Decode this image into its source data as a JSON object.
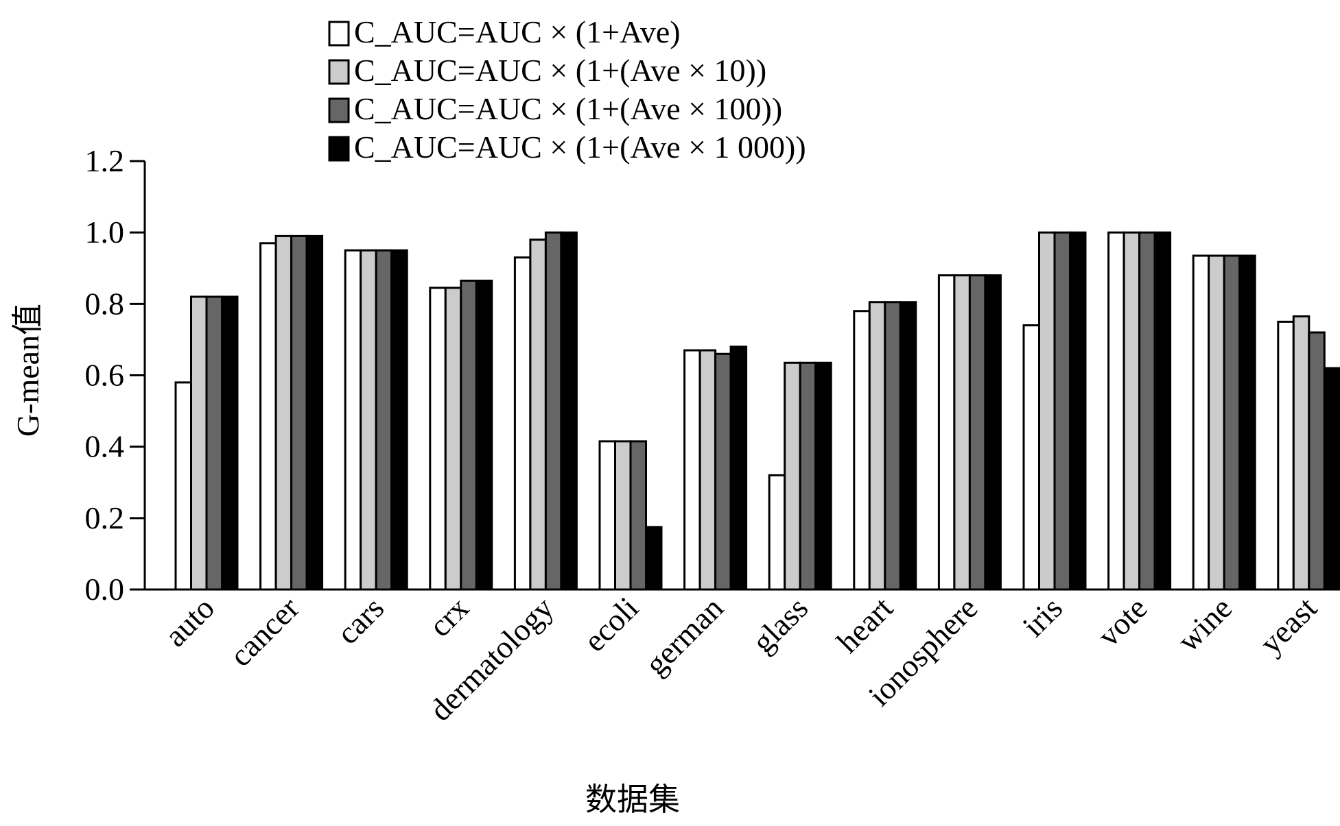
{
  "chart_data": {
    "type": "bar",
    "xlabel": "数据集",
    "ylabel": "G-mean值",
    "ylim": [
      0,
      1.2
    ],
    "yticks": [
      "0.0",
      "0.2",
      "0.4",
      "0.6",
      "0.8",
      "1.0",
      "1.2"
    ],
    "grid": false,
    "legend_position": "top",
    "categories": [
      "auto",
      "cancer",
      "cars",
      "crx",
      "dermatology",
      "ecoli",
      "german",
      "glass",
      "heart",
      "ionosphere",
      "iris",
      "vote",
      "wine",
      "yeast"
    ],
    "series": [
      {
        "name": "C_AUC=AUC × (1+Ave)",
        "color": "#ffffff",
        "values": [
          0.58,
          0.97,
          0.95,
          0.845,
          0.93,
          0.415,
          0.67,
          0.32,
          0.78,
          0.88,
          0.74,
          1.0,
          0.935,
          0.75
        ]
      },
      {
        "name": "C_AUC=AUC × (1+(Ave × 10))",
        "color": "#cccccc",
        "values": [
          0.82,
          0.99,
          0.95,
          0.845,
          0.98,
          0.415,
          0.67,
          0.635,
          0.805,
          0.88,
          1.0,
          1.0,
          0.935,
          0.765
        ]
      },
      {
        "name": "C_AUC=AUC × (1+(Ave × 100))",
        "color": "#666666",
        "values": [
          0.82,
          0.99,
          0.95,
          0.865,
          1.0,
          0.415,
          0.66,
          0.635,
          0.805,
          0.88,
          1.0,
          1.0,
          0.935,
          0.72
        ]
      },
      {
        "name": "C_AUC=AUC × (1+(Ave × 1 000))",
        "color": "#000000",
        "values": [
          0.82,
          0.99,
          0.95,
          0.865,
          1.0,
          0.175,
          0.68,
          0.635,
          0.805,
          0.88,
          1.0,
          1.0,
          0.935,
          0.62
        ]
      }
    ]
  }
}
